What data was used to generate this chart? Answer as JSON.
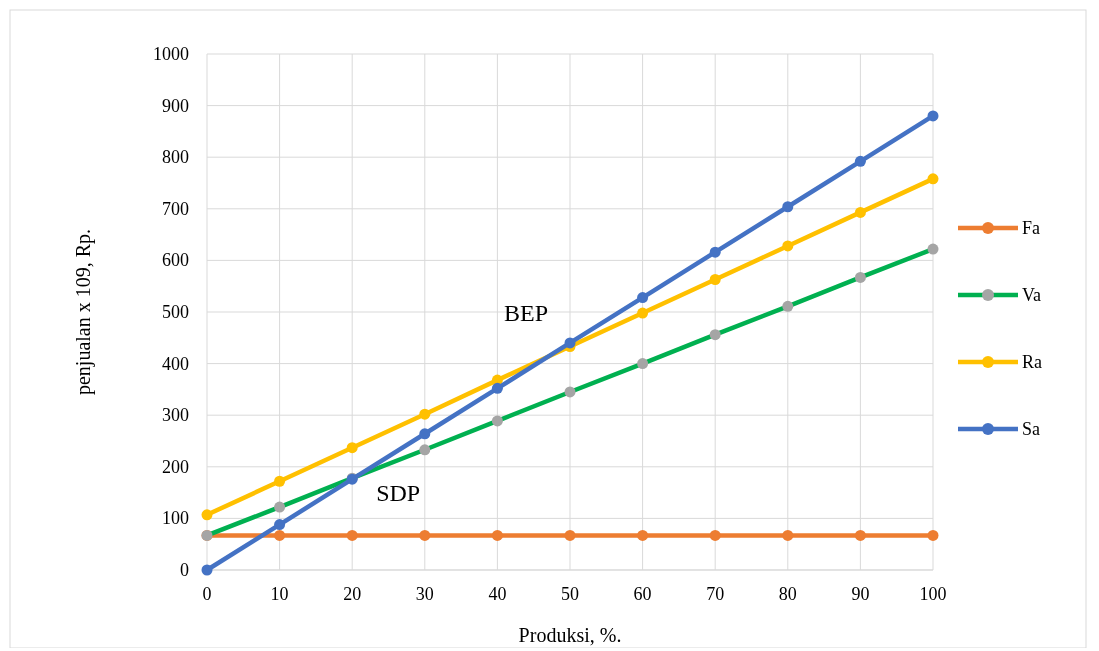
{
  "chart_data": {
    "type": "line",
    "xlabel": "Produksi, %.",
    "ylabel": "penjualan x 109, Rp.",
    "x": [
      0,
      10,
      20,
      30,
      40,
      50,
      60,
      70,
      80,
      90,
      100
    ],
    "xlim": [
      0,
      100
    ],
    "xticks": [
      0,
      10,
      20,
      30,
      40,
      50,
      60,
      70,
      80,
      90,
      100
    ],
    "ylim": [
      0,
      1000
    ],
    "yticks": [
      0,
      100,
      200,
      300,
      400,
      500,
      600,
      700,
      800,
      900,
      1000
    ],
    "grid": true,
    "legend": "right",
    "marker": "circle",
    "line_style": "solid",
    "series": [
      {
        "name": "Fa",
        "color": "#ed7d31",
        "values": [
          67,
          67,
          67,
          67,
          67,
          67,
          67,
          67,
          67,
          67,
          67
        ]
      },
      {
        "name": "Va",
        "color": "#00b050",
        "colors": [
          "#a5a5a5",
          "#a5a5a5",
          "#a5a5a5",
          "#a5a5a5",
          "#a5a5a5",
          "#a5a5a5",
          "#a5a5a5",
          "#a5a5a5",
          "#a5a5a5",
          "#a5a5a5",
          "#a5a5a5"
        ],
        "values": [
          67,
          122,
          178,
          233,
          289,
          345,
          400,
          456,
          511,
          567,
          622
        ]
      },
      {
        "name": "Ra",
        "color": "#ffc000",
        "values": [
          107,
          172,
          237,
          302,
          368,
          433,
          498,
          563,
          628,
          693,
          758
        ]
      },
      {
        "name": "Sa",
        "color": "#4472c4",
        "values": [
          0,
          88,
          176,
          264,
          352,
          440,
          528,
          616,
          704,
          792,
          880
        ]
      }
    ],
    "annotations": [
      {
        "text": "BEP",
        "x": 50,
        "y": 440
      },
      {
        "text": "SDP",
        "x": 20,
        "y": 176
      }
    ]
  }
}
